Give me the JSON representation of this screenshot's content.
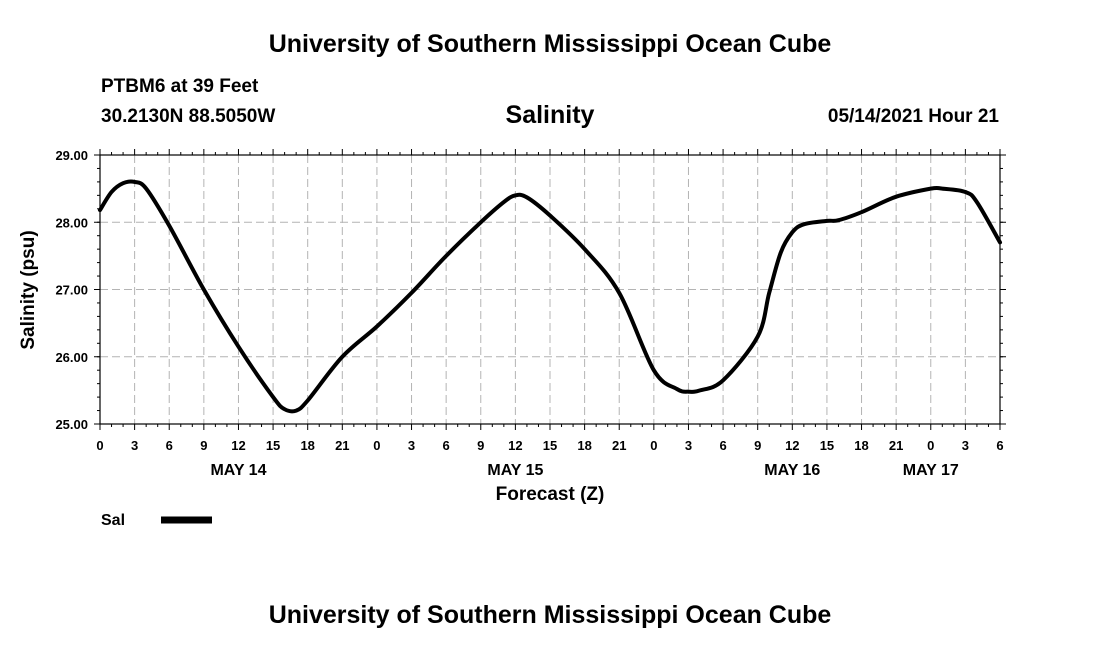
{
  "header": {
    "title": "University of Southern Mississippi Ocean Cube",
    "station": "PTBM6 at 39 Feet",
    "coordinates": "30.2130N  88.5050W",
    "variable": "Salinity",
    "datetime": "05/14/2021 Hour 21"
  },
  "footer": {
    "title": "University of Southern Mississippi Ocean Cube"
  },
  "chart_data": {
    "type": "line",
    "title": "Salinity",
    "xlabel": "Forecast (Z)",
    "ylabel": "Salinity (psu)",
    "ylim": [
      25.0,
      29.0
    ],
    "xlim": [
      "05/14 00Z",
      "05/17 06Z"
    ],
    "grid": true,
    "legend_placement": "bottom-left",
    "y_ticks": [
      "25.00",
      "26.00",
      "27.00",
      "28.00",
      "29.00"
    ],
    "x_tick_labels": [
      "0",
      "3",
      "6",
      "9",
      "12",
      "15",
      "18",
      "21",
      "0",
      "3",
      "6",
      "9",
      "12",
      "15",
      "18",
      "21",
      "0",
      "3",
      "6",
      "9",
      "12",
      "15",
      "18",
      "21",
      "0",
      "3",
      "6"
    ],
    "date_labels": [
      {
        "label": "MAY 14",
        "x": "05/14 12Z"
      },
      {
        "label": "MAY 15",
        "x": "05/15 12Z"
      },
      {
        "label": "MAY 16",
        "x": "05/16 12Z"
      },
      {
        "label": "MAY 17",
        "x": "05/17 00Z"
      }
    ],
    "series": [
      {
        "name": "Sal",
        "color": "#000000",
        "x": [
          "05/14 00Z",
          "05/14 01Z",
          "05/14 02Z",
          "05/14 03Z",
          "05/14 04Z",
          "05/14 06Z",
          "05/14 09Z",
          "05/14 12Z",
          "05/14 15Z",
          "05/14 16Z",
          "05/14 17Z",
          "05/14 18Z",
          "05/14 21Z",
          "05/15 00Z",
          "05/15 03Z",
          "05/15 06Z",
          "05/15 09Z",
          "05/15 11Z",
          "05/15 12Z",
          "05/15 13Z",
          "05/15 15Z",
          "05/15 18Z",
          "05/15 21Z",
          "05/16 00Z",
          "05/16 02Z",
          "05/16 03Z",
          "05/16 04Z",
          "05/16 06Z",
          "05/16 09Z",
          "05/16 10Z",
          "05/16 11Z",
          "05/16 12Z",
          "05/16 13Z",
          "05/16 15Z",
          "05/16 16Z",
          "05/16 18Z",
          "05/16 21Z",
          "05/17 00Z",
          "05/17 01Z",
          "05/17 03Z",
          "05/17 04Z",
          "05/17 06Z"
        ],
        "values": [
          28.18,
          28.45,
          28.58,
          28.6,
          28.5,
          27.95,
          27.0,
          26.15,
          25.4,
          25.22,
          25.2,
          25.35,
          26.0,
          26.45,
          26.95,
          27.5,
          28.0,
          28.3,
          28.4,
          28.37,
          28.1,
          27.6,
          26.95,
          25.8,
          25.52,
          25.48,
          25.5,
          25.65,
          26.3,
          26.95,
          27.55,
          27.85,
          27.97,
          28.02,
          28.03,
          28.15,
          28.38,
          28.5,
          28.5,
          28.45,
          28.3,
          27.7
        ]
      }
    ]
  }
}
